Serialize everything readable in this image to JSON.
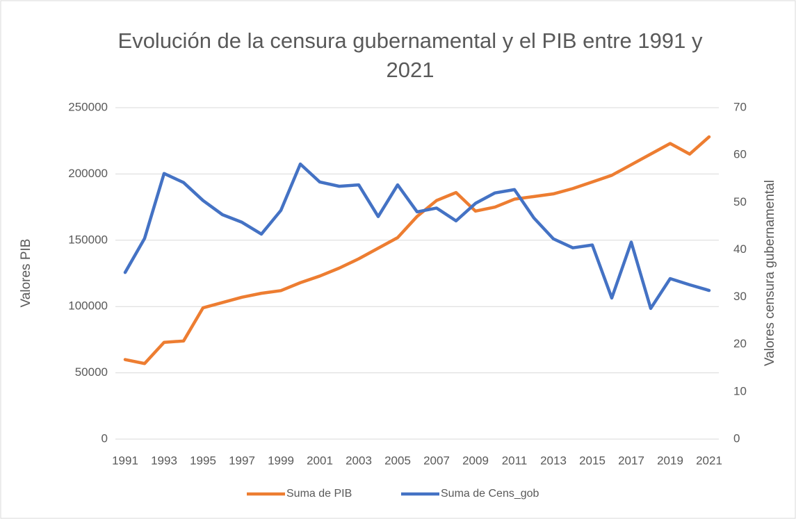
{
  "chart_data": {
    "type": "line",
    "title": "Evolución de la censura gubernamental y el PIB entre 1991 y 2021",
    "y_label": "Valores PIB",
    "y2_label": "Valores censura gubernamental",
    "categories": [
      "1991",
      null,
      "1993",
      null,
      "1995",
      null,
      "1997",
      null,
      "1999",
      null,
      "2001",
      null,
      "2003",
      null,
      "2005",
      null,
      "2007",
      null,
      "2009",
      null,
      "2011",
      null,
      "2013",
      null,
      "2015",
      null,
      "2017",
      null,
      "2019",
      null,
      "2021"
    ],
    "series": [
      {
        "name": "Suma de PIB",
        "color": "#ED7D31",
        "axis": "y",
        "values": [
          60000,
          57000,
          73000,
          74000,
          99000,
          103000,
          107000,
          110000,
          112000,
          118000,
          123000,
          129000,
          136000,
          144000,
          152000,
          168000,
          180000,
          186000,
          172000,
          175000,
          181000,
          183000,
          185000,
          189000,
          194000,
          199000,
          207000,
          215000,
          223000,
          215000,
          228000
        ]
      },
      {
        "name": "Suma de Cens_gob",
        "color": "#4472C4",
        "axis": "y2",
        "values": [
          35.2,
          42.4,
          56.1,
          54.2,
          50.4,
          47.4,
          45.8,
          43.3,
          48.3,
          58.1,
          54.3,
          53.4,
          53.7,
          47,
          53.7,
          48,
          48.8,
          46.1,
          49.8,
          52,
          52.7,
          46.7,
          42.3,
          40.4,
          41,
          29.8,
          41.6,
          27.6,
          33.9,
          32.6,
          31.4
        ]
      }
    ],
    "ylim": [
      0,
      250000
    ],
    "yticks": [
      0,
      50000,
      100000,
      150000,
      200000,
      250000
    ],
    "y2lim": [
      0,
      70
    ],
    "y2ticks": [
      0,
      10,
      20,
      30,
      40,
      50,
      60,
      70
    ],
    "grid": true,
    "legend": "bottom"
  }
}
